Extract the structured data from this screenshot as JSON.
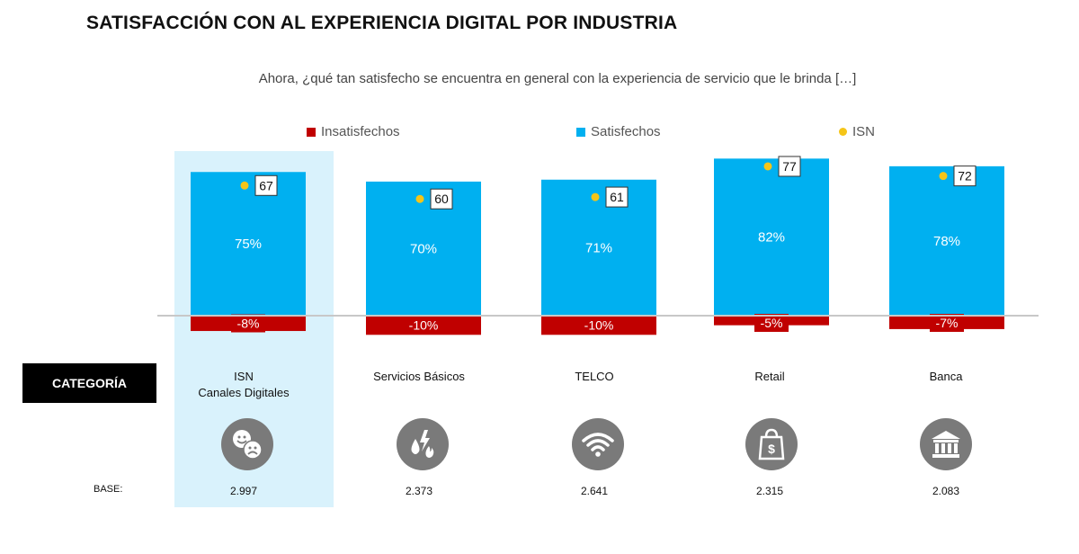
{
  "title": "SATISFACCIÓN CON AL EXPERIENCIA DIGITAL POR INDUSTRIA",
  "subtitle": "Ahora, ¿qué tan satisfecho se encuentra en general con la experiencia de servicio que le brinda […]",
  "legend": {
    "insatisfechos": "Insatisfechos",
    "satisfechos": "Satisfechos",
    "isn": "ISN"
  },
  "colors": {
    "satisfechos": "#00b0f0",
    "insatisfechos": "#c00000",
    "isn": "#f5c518",
    "highlight": "#d9f2fc"
  },
  "category_header": "CATEGORÍA",
  "base_label": "BASE:",
  "categories": [
    {
      "label_line1": "ISN",
      "label_line2": "Canales Digitales",
      "base": "2.997",
      "icon": "faces-icon"
    },
    {
      "label_line1": "Servicios Básicos",
      "label_line2": "",
      "base": "2.373",
      "icon": "utilities-icon"
    },
    {
      "label_line1": "TELCO",
      "label_line2": "",
      "base": "2.641",
      "icon": "wifi-icon"
    },
    {
      "label_line1": "Retail",
      "label_line2": "",
      "base": "2.315",
      "icon": "shopping-bag-icon"
    },
    {
      "label_line1": "Banca",
      "label_line2": "",
      "base": "2.083",
      "icon": "bank-icon"
    }
  ],
  "chart_data": {
    "type": "bar",
    "categories": [
      "ISN Canales Digitales",
      "Servicios Básicos",
      "TELCO",
      "Retail",
      "Banca"
    ],
    "series": [
      {
        "name": "Satisfechos",
        "values": [
          75,
          70,
          71,
          82,
          78
        ],
        "labels": [
          "75%",
          "70%",
          "71%",
          "82%",
          "78%"
        ]
      },
      {
        "name": "Insatisfechos",
        "values": [
          -8,
          -10,
          -10,
          -5,
          -7
        ],
        "labels": [
          "-8%",
          "-10%",
          "-10%",
          "-5%",
          "-7%"
        ]
      },
      {
        "name": "ISN",
        "values": [
          67,
          60,
          61,
          77,
          72
        ],
        "labels": [
          "67",
          "60",
          "61",
          "77",
          "72"
        ]
      }
    ],
    "title": "SATISFACCIÓN CON AL EXPERIENCIA DIGITAL POR INDUSTRIA",
    "legend_position": "top",
    "highlighted_category": 0
  }
}
